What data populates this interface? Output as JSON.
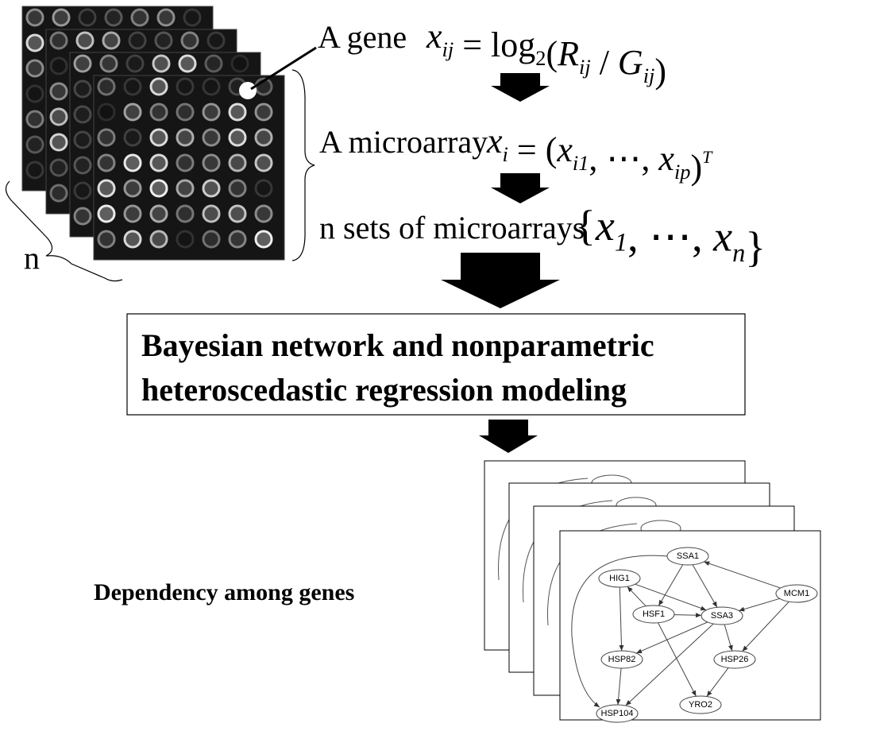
{
  "pipeline": {
    "gene": {
      "label": "A gene",
      "formula": [
        {
          "base": "x",
          "sub": "ij",
          "italic": true
        },
        {
          "base": " = "
        },
        {
          "base": "log",
          "sub": "2"
        },
        {
          "base": "("
        },
        {
          "base": "R",
          "sub": "ij",
          "italic": true
        },
        {
          "base": " / "
        },
        {
          "base": "G",
          "sub": "ij",
          "italic": true
        },
        {
          "base": ")"
        }
      ]
    },
    "microarray": {
      "label": "A microarray",
      "formula": [
        {
          "base": "x",
          "sub": "i",
          "italic": true
        },
        {
          "base": " = ("
        },
        {
          "base": "x",
          "sub": "i1",
          "italic": true
        },
        {
          "base": ", ⋯, "
        },
        {
          "base": "x",
          "sub": "ip",
          "italic": true
        },
        {
          "base": ")",
          "sup": "T"
        }
      ]
    },
    "sets": {
      "label": "n sets of microarrays",
      "formula": [
        {
          "base": "{"
        },
        {
          "base": "x",
          "sub": "1",
          "italic": true
        },
        {
          "base": ", ⋯, "
        },
        {
          "base": "x",
          "sub": "n",
          "italic": true
        },
        {
          "base": "}"
        }
      ]
    },
    "count_label": "n",
    "model_box": {
      "lines": [
        "Bayesian network and nonparametric",
        "heteroscedastic regression modeling"
      ]
    },
    "result_label": "Dependency among genes",
    "network": {
      "nodes": [
        "SSA1",
        "HIG1",
        "MCM1",
        "HSF1",
        "SSA3",
        "HSP82",
        "HSP26",
        "HSP104",
        "YRO2"
      ]
    }
  }
}
